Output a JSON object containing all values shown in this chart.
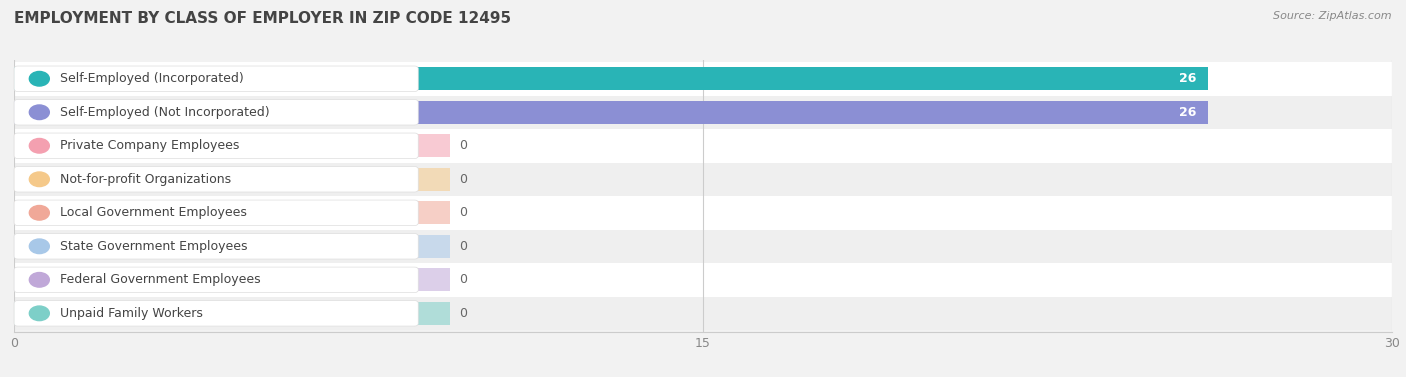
{
  "title": "EMPLOYMENT BY CLASS OF EMPLOYER IN ZIP CODE 12495",
  "source": "Source: ZipAtlas.com",
  "categories": [
    "Self-Employed (Incorporated)",
    "Self-Employed (Not Incorporated)",
    "Private Company Employees",
    "Not-for-profit Organizations",
    "Local Government Employees",
    "State Government Employees",
    "Federal Government Employees",
    "Unpaid Family Workers"
  ],
  "values": [
    26,
    26,
    0,
    0,
    0,
    0,
    0,
    0
  ],
  "bar_colors": [
    "#29b4b6",
    "#8b8fd4",
    "#f4a0b0",
    "#f5c98a",
    "#f0a898",
    "#a8c8e8",
    "#c0a8d8",
    "#7dcfc8"
  ],
  "bar_bg_colors": [
    "#29b4b6",
    "#8b8fd4",
    "#f4a0b0",
    "#f5c98a",
    "#f0a898",
    "#a8c8e8",
    "#c0a8d8",
    "#7dcfc8"
  ],
  "xlim": [
    0,
    30
  ],
  "xticks": [
    0,
    15,
    30
  ],
  "background_color": "#f2f2f2",
  "title_fontsize": 11,
  "source_fontsize": 8,
  "bar_label_fontsize": 9,
  "value_label_fontsize": 9
}
